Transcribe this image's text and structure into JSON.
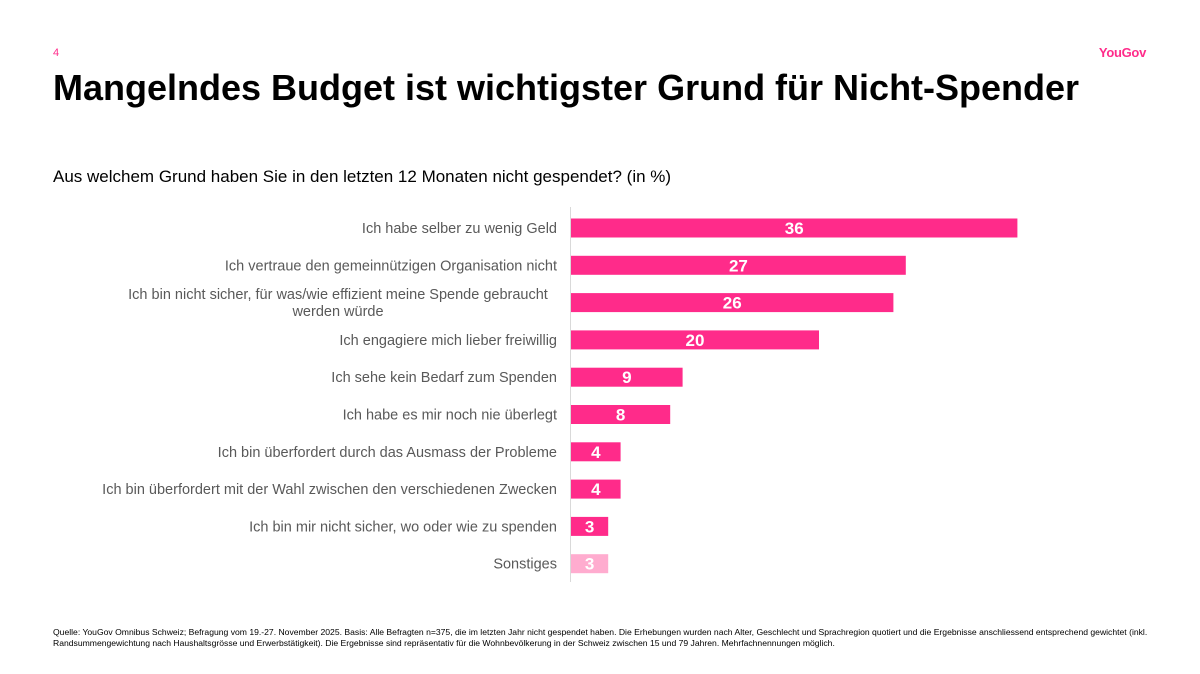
{
  "page": {
    "number": "4",
    "logo": "YouGov"
  },
  "title": "Mangelndes Budget ist wichtigster Grund für Nicht-Spender",
  "subtitle": "Aus welchem Grund haben Sie in den letzten 12 Monaten nicht gespendet? (in %)",
  "chart_data": {
    "type": "bar",
    "orientation": "horizontal",
    "categories": [
      "Ich habe selber zu wenig Geld",
      "Ich vertraue den gemeinnützigen Organisation nicht",
      "Ich bin nicht sicher, für was/wie effizient meine Spende  gebraucht werden würde",
      "Ich engagiere mich lieber freiwillig",
      "Ich sehe kein Bedarf zum Spenden",
      "Ich habe es mir noch nie überlegt",
      "Ich bin überfordert durch das Ausmass der Probleme",
      "Ich bin überfordert mit der Wahl zwischen den verschiedenen Zwecken",
      "Ich bin mir nicht sicher, wo oder wie zu spenden",
      "Sonstiges"
    ],
    "values": [
      36,
      27,
      26,
      20,
      9,
      8,
      4,
      4,
      3,
      3
    ],
    "bar_color": "#ff2b8a",
    "highlight_color": "#ffaccf",
    "highlighted": [
      false,
      false,
      false,
      false,
      false,
      false,
      false,
      false,
      false,
      true
    ],
    "title": "",
    "xlabel": "",
    "ylabel": "",
    "xlim": [
      0,
      40
    ],
    "data_labels": true
  },
  "footnote": "Quelle: YouGov Omnibus Schweiz; Befragung vom 19.-27. November 2025. Basis: Alle Befragten n=375, die im letzten Jahr nicht gespendet haben. Die Erhebungen wurden nach Alter, Geschlecht und Sprachregion quotiert und die Ergebnisse anschliessend entsprechend gewichtet (inkl. Randsummengewichtung nach Haushaltsgrösse und Erwerbstätigkeit). Die Ergebnisse sind repräsentativ für die Wohnbevölkerung in der Schweiz zwischen 15 und 79 Jahren. Mehrfachnennungen möglich."
}
